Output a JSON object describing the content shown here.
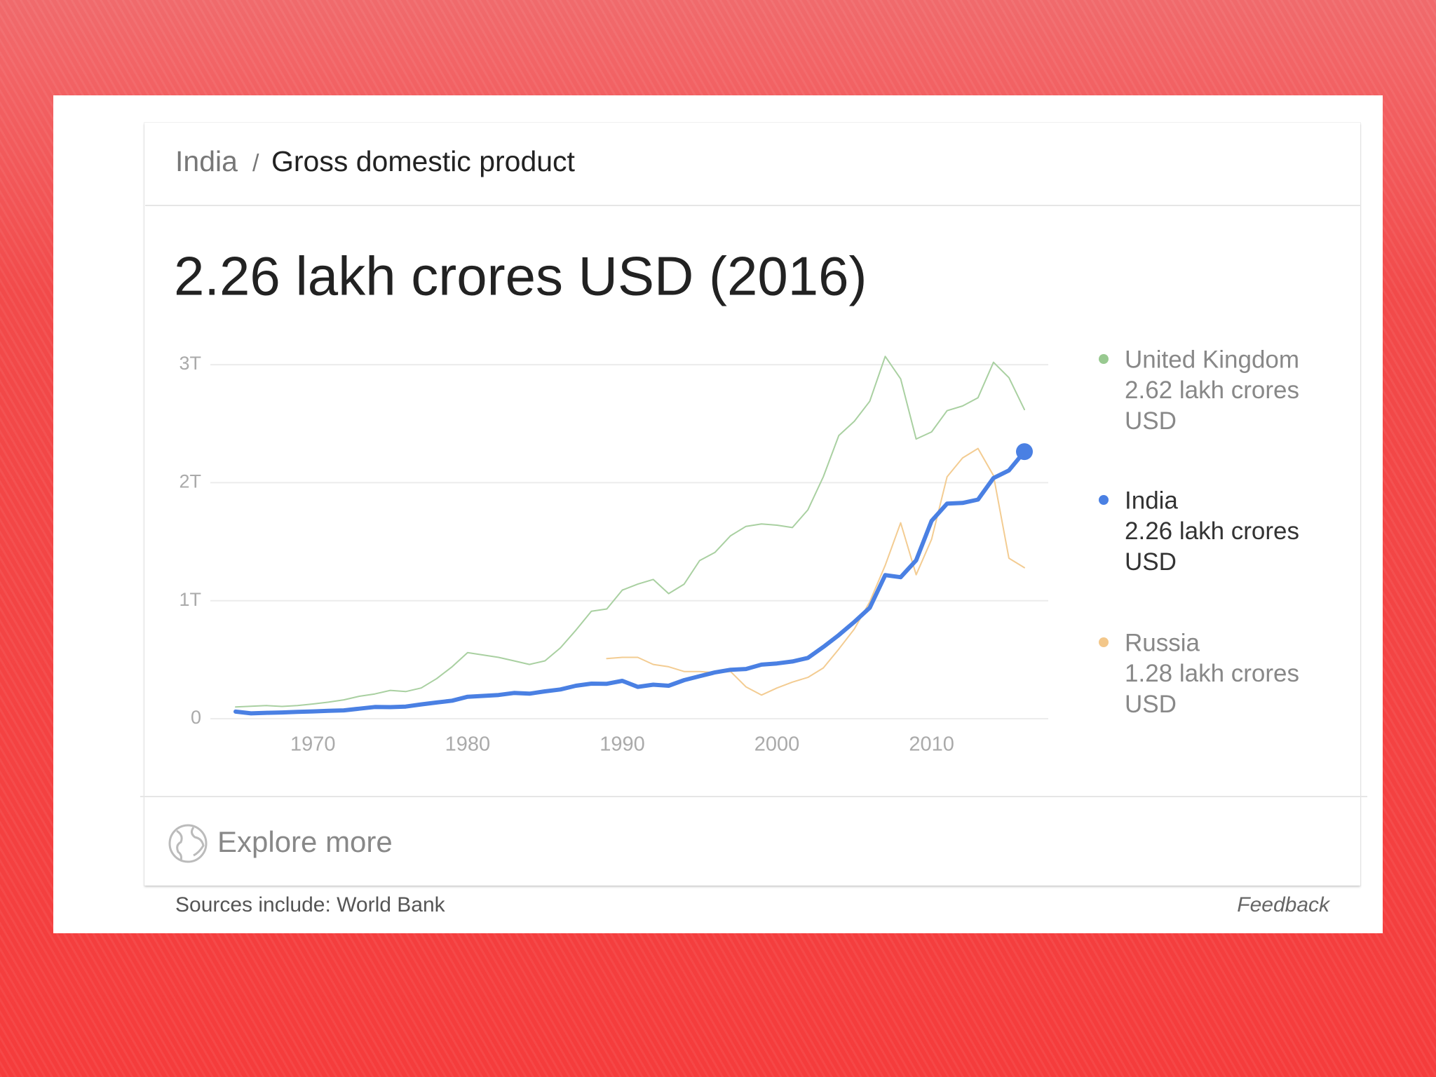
{
  "header": {
    "breadcrumb": [
      "India",
      "Gross domestic product"
    ],
    "separator": "/"
  },
  "headline": "2.26 lakh crores USD (2016)",
  "chart_data": {
    "type": "line",
    "xlim": [
      1965,
      2016
    ],
    "xticks": [
      1970,
      1980,
      1990,
      2000,
      2010
    ],
    "ylim": [
      0,
      3.1
    ],
    "yticks": [
      0,
      {
        "value": 1,
        "label": "1T"
      },
      {
        "value": 2,
        "label": "2T"
      },
      {
        "value": 3,
        "label": "3T"
      }
    ],
    "grid": true,
    "legend": "right",
    "series": [
      {
        "name": "United Kingdom",
        "color": "#a9d0a1",
        "legend_color": "#98c990",
        "latest_label": "2.62 lakh crores USD",
        "width": 2,
        "x": [
          1965,
          1966,
          1967,
          1968,
          1969,
          1970,
          1971,
          1972,
          1973,
          1974,
          1975,
          1976,
          1977,
          1978,
          1979,
          1980,
          1981,
          1982,
          1983,
          1984,
          1985,
          1986,
          1987,
          1988,
          1989,
          1990,
          1991,
          1992,
          1993,
          1994,
          1995,
          1996,
          1997,
          1998,
          1999,
          2000,
          2001,
          2002,
          2003,
          2004,
          2005,
          2006,
          2007,
          2008,
          2009,
          2010,
          2011,
          2012,
          2013,
          2014,
          2015,
          2016
        ],
        "values": [
          0.1,
          0.105,
          0.111,
          0.104,
          0.112,
          0.125,
          0.14,
          0.16,
          0.19,
          0.21,
          0.24,
          0.23,
          0.26,
          0.34,
          0.44,
          0.56,
          0.54,
          0.52,
          0.49,
          0.46,
          0.49,
          0.6,
          0.75,
          0.91,
          0.93,
          1.09,
          1.14,
          1.18,
          1.06,
          1.14,
          1.34,
          1.41,
          1.55,
          1.63,
          1.65,
          1.64,
          1.62,
          1.77,
          2.05,
          2.4,
          2.52,
          2.69,
          3.07,
          2.88,
          2.37,
          2.43,
          2.61,
          2.65,
          2.72,
          3.02,
          2.89,
          2.62
        ]
      },
      {
        "name": "India",
        "color": "#4a80e3",
        "legend_color": "#4a80e3",
        "latest_label": "2.26 lakh crores USD",
        "width": 6,
        "marker_last": true,
        "x": [
          1965,
          1966,
          1967,
          1968,
          1969,
          1970,
          1971,
          1972,
          1973,
          1974,
          1975,
          1976,
          1977,
          1978,
          1979,
          1980,
          1981,
          1982,
          1983,
          1984,
          1985,
          1986,
          1987,
          1988,
          1989,
          1990,
          1991,
          1992,
          1993,
          1994,
          1995,
          1996,
          1997,
          1998,
          1999,
          2000,
          2001,
          2002,
          2003,
          2004,
          2005,
          2006,
          2007,
          2008,
          2009,
          2010,
          2011,
          2012,
          2013,
          2014,
          2015,
          2016
        ],
        "values": [
          0.06,
          0.045,
          0.05,
          0.053,
          0.058,
          0.062,
          0.067,
          0.071,
          0.085,
          0.099,
          0.098,
          0.103,
          0.121,
          0.137,
          0.153,
          0.186,
          0.193,
          0.201,
          0.218,
          0.212,
          0.232,
          0.248,
          0.279,
          0.297,
          0.296,
          0.321,
          0.27,
          0.288,
          0.279,
          0.327,
          0.36,
          0.393,
          0.415,
          0.421,
          0.458,
          0.468,
          0.485,
          0.515,
          0.608,
          0.709,
          0.82,
          0.94,
          1.217,
          1.199,
          1.342,
          1.676,
          1.823,
          1.828,
          1.857,
          2.039,
          2.104,
          2.263
        ]
      },
      {
        "name": "Russia",
        "color": "#f3cc92",
        "legend_color": "#f3c78a",
        "latest_label": "1.28 lakh crores USD",
        "width": 2,
        "x": [
          1989,
          1990,
          1991,
          1992,
          1993,
          1994,
          1995,
          1996,
          1997,
          1998,
          1999,
          2000,
          2001,
          2002,
          2003,
          2004,
          2005,
          2006,
          2007,
          2008,
          2009,
          2010,
          2011,
          2012,
          2013,
          2014,
          2015,
          2016
        ],
        "values": [
          0.51,
          0.52,
          0.52,
          0.46,
          0.44,
          0.4,
          0.4,
          0.39,
          0.4,
          0.27,
          0.2,
          0.26,
          0.31,
          0.35,
          0.43,
          0.59,
          0.76,
          0.99,
          1.3,
          1.66,
          1.22,
          1.52,
          2.05,
          2.21,
          2.29,
          2.06,
          1.36,
          1.28
        ]
      }
    ]
  },
  "footer": {
    "explore": "Explore more",
    "sources": "Sources include: World Bank",
    "feedback": "Feedback"
  }
}
